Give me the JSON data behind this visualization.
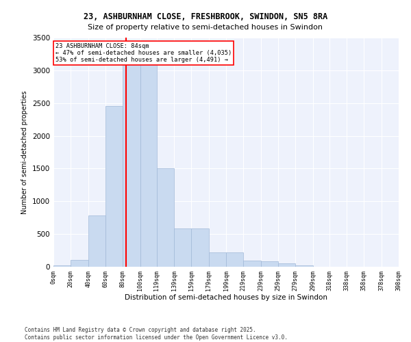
{
  "title_line1": "23, ASHBURNHAM CLOSE, FRESHBROOK, SWINDON, SN5 8RA",
  "title_line2": "Size of property relative to semi-detached houses in Swindon",
  "xlabel": "Distribution of semi-detached houses by size in Swindon",
  "ylabel": "Number of semi-detached properties",
  "footer_line1": "Contains HM Land Registry data © Crown copyright and database right 2025.",
  "footer_line2": "Contains public sector information licensed under the Open Government Licence v3.0.",
  "annotation_line1": "23 ASHBURNHAM CLOSE: 84sqm",
  "annotation_line2": "← 47% of semi-detached houses are smaller (4,035)",
  "annotation_line3": "53% of semi-detached houses are larger (4,491) →",
  "property_size": 84,
  "bar_color": "#c9daf0",
  "bar_edge_color": "#a0b8d8",
  "vline_color": "red",
  "background_color": "#eef2fc",
  "grid_color": "#ffffff",
  "categories": [
    "0sqm",
    "20sqm",
    "40sqm",
    "60sqm",
    "80sqm",
    "100sqm",
    "119sqm",
    "139sqm",
    "159sqm",
    "179sqm",
    "199sqm",
    "219sqm",
    "239sqm",
    "259sqm",
    "279sqm",
    "299sqm",
    "318sqm",
    "338sqm",
    "358sqm",
    "378sqm",
    "398sqm"
  ],
  "bin_edges": [
    0,
    20,
    40,
    60,
    80,
    100,
    119,
    139,
    159,
    179,
    199,
    219,
    239,
    259,
    279,
    299,
    318,
    338,
    358,
    378,
    398
  ],
  "values": [
    20,
    100,
    780,
    2460,
    3290,
    3290,
    1500,
    580,
    580,
    220,
    220,
    90,
    80,
    50,
    20,
    5,
    5,
    2,
    0,
    0,
    0
  ],
  "ylim": [
    0,
    3500
  ],
  "yticks": [
    0,
    500,
    1000,
    1500,
    2000,
    2500,
    3000,
    3500
  ]
}
